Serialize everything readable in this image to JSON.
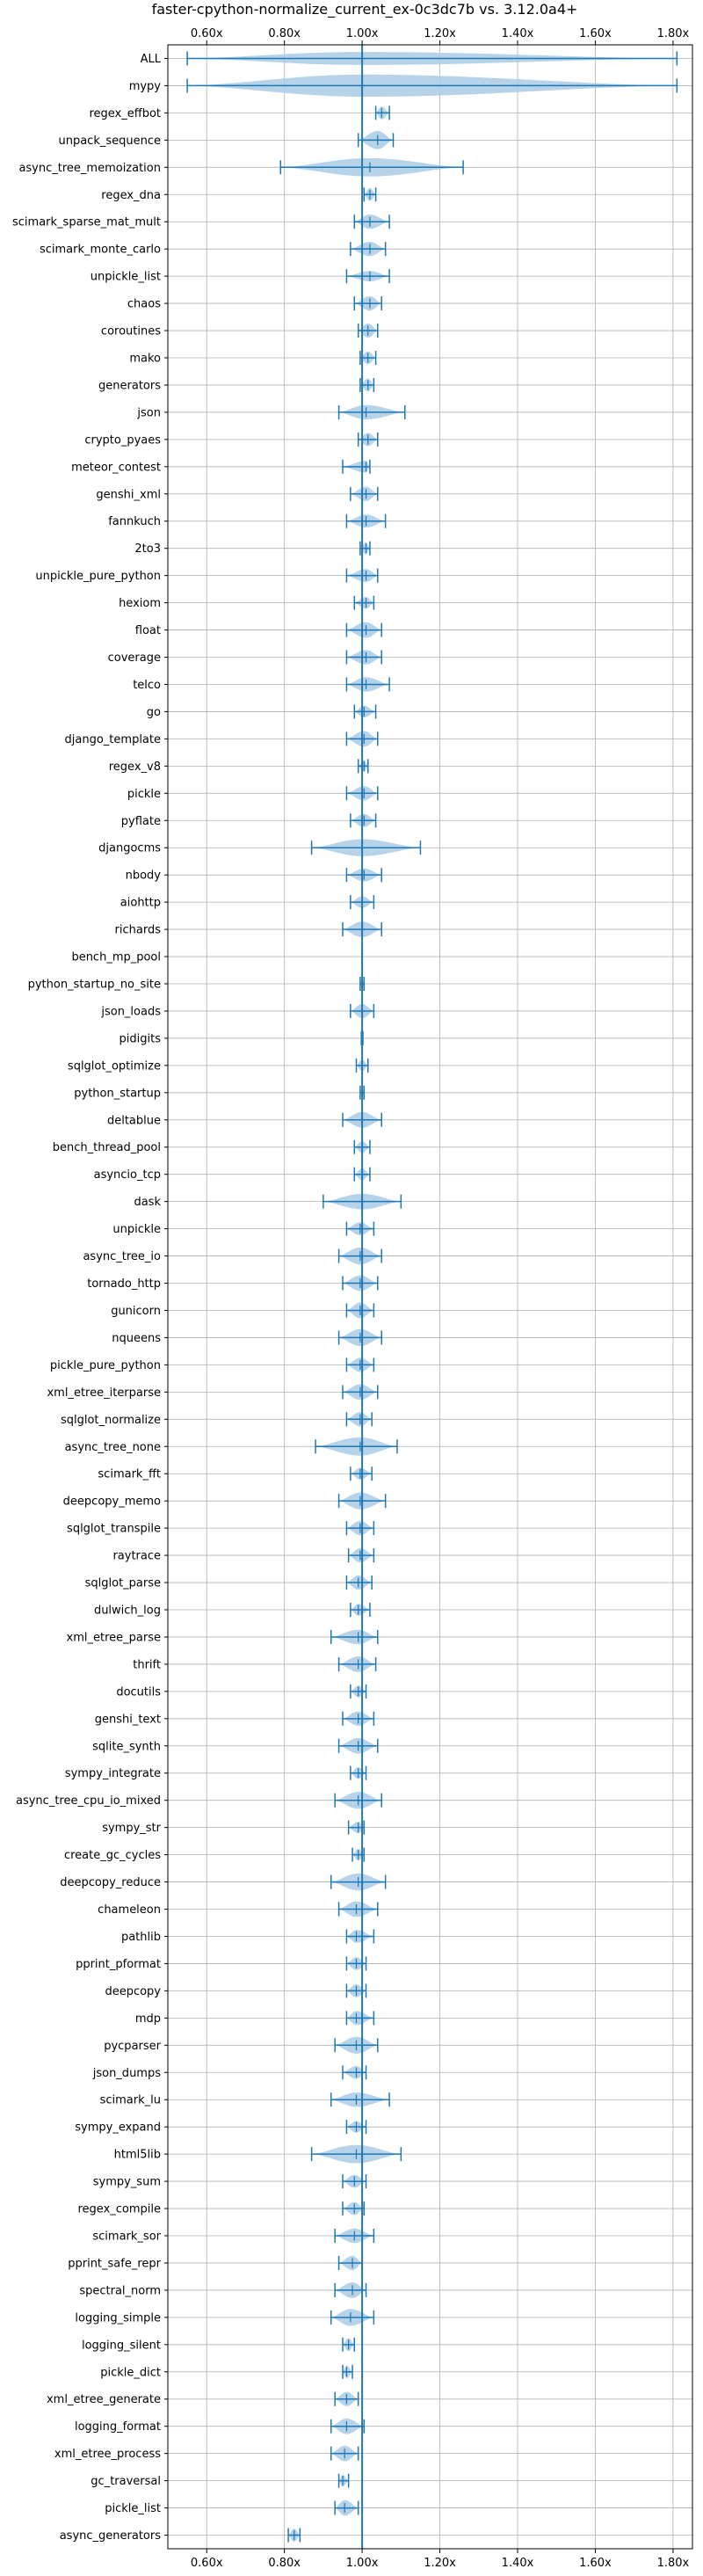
{
  "chart_data": {
    "type": "violin",
    "title": "faster-cpython-normalize_current_ex-0c3dc7b vs. 3.12.0a4+",
    "xlabel": "",
    "ylabel": "",
    "x_ticks": [
      0.6,
      0.8,
      1.0,
      1.2,
      1.4,
      1.6,
      1.8
    ],
    "x_tick_labels": [
      "0.60x",
      "0.80x",
      "1.00x",
      "1.20x",
      "1.40x",
      "1.60x",
      "1.80x"
    ],
    "xlim": [
      0.5,
      1.85
    ],
    "reference_line": 1.0,
    "grid": true,
    "colors": {
      "violin": "#a9cbe6",
      "line": "#1f77b4",
      "axis": "#000000",
      "grid": "#b0b0b0"
    },
    "benchmarks": [
      {
        "name": "ALL",
        "min": 0.55,
        "max": 1.81,
        "median": 1.0,
        "width": 0.5
      },
      {
        "name": "mypy",
        "min": 0.55,
        "max": 1.81,
        "median": 1.0,
        "width": 0.85
      },
      {
        "name": "regex_effbot",
        "min": 1.035,
        "max": 1.07,
        "median": 1.05,
        "width": 0.5
      },
      {
        "name": "unpack_sequence",
        "min": 0.99,
        "max": 1.08,
        "median": 1.04,
        "width": 0.7
      },
      {
        "name": "async_tree_memoization",
        "min": 0.79,
        "max": 1.26,
        "median": 1.02,
        "width": 0.7
      },
      {
        "name": "regex_dna",
        "min": 1.005,
        "max": 1.035,
        "median": 1.02,
        "width": 0.5
      },
      {
        "name": "scimark_sparse_mat_mult",
        "min": 0.98,
        "max": 1.07,
        "median": 1.02,
        "width": 0.55
      },
      {
        "name": "scimark_monte_carlo",
        "min": 0.97,
        "max": 1.06,
        "median": 1.02,
        "width": 0.55
      },
      {
        "name": "unpickle_list",
        "min": 0.96,
        "max": 1.07,
        "median": 1.02,
        "width": 0.4
      },
      {
        "name": "chaos",
        "min": 0.98,
        "max": 1.05,
        "median": 1.02,
        "width": 0.55
      },
      {
        "name": "coroutines",
        "min": 0.99,
        "max": 1.04,
        "median": 1.015,
        "width": 0.55
      },
      {
        "name": "mako",
        "min": 0.995,
        "max": 1.035,
        "median": 1.015,
        "width": 0.5
      },
      {
        "name": "generators",
        "min": 0.995,
        "max": 1.03,
        "median": 1.015,
        "width": 0.5
      },
      {
        "name": "json",
        "min": 0.94,
        "max": 1.11,
        "median": 1.01,
        "width": 0.55
      },
      {
        "name": "crypto_pyaes",
        "min": 0.99,
        "max": 1.04,
        "median": 1.015,
        "width": 0.5
      },
      {
        "name": "meteor_contest",
        "min": 0.95,
        "max": 1.02,
        "median": 1.01,
        "width": 0.45
      },
      {
        "name": "genshi_xml",
        "min": 0.97,
        "max": 1.04,
        "median": 1.01,
        "width": 0.55
      },
      {
        "name": "fannkuch",
        "min": 0.96,
        "max": 1.06,
        "median": 1.01,
        "width": 0.5
      },
      {
        "name": "2to3",
        "min": 0.995,
        "max": 1.02,
        "median": 1.01,
        "width": 0.45
      },
      {
        "name": "unpickle_pure_python",
        "min": 0.96,
        "max": 1.04,
        "median": 1.01,
        "width": 0.5
      },
      {
        "name": "hexiom",
        "min": 0.98,
        "max": 1.03,
        "median": 1.01,
        "width": 0.45
      },
      {
        "name": "float",
        "min": 0.96,
        "max": 1.05,
        "median": 1.01,
        "width": 0.6
      },
      {
        "name": "coverage",
        "min": 0.96,
        "max": 1.05,
        "median": 1.01,
        "width": 0.55
      },
      {
        "name": "telco",
        "min": 0.96,
        "max": 1.07,
        "median": 1.01,
        "width": 0.55
      },
      {
        "name": "go",
        "min": 0.98,
        "max": 1.035,
        "median": 1.005,
        "width": 0.45
      },
      {
        "name": "django_template",
        "min": 0.96,
        "max": 1.04,
        "median": 1.005,
        "width": 0.6
      },
      {
        "name": "regex_v8",
        "min": 0.99,
        "max": 1.015,
        "median": 1.005,
        "width": 0.45
      },
      {
        "name": "pickle",
        "min": 0.96,
        "max": 1.04,
        "median": 1.005,
        "width": 0.55
      },
      {
        "name": "pyflate",
        "min": 0.97,
        "max": 1.035,
        "median": 1.005,
        "width": 0.5
      },
      {
        "name": "djangocms",
        "min": 0.87,
        "max": 1.15,
        "median": 1.0,
        "width": 0.65
      },
      {
        "name": "nbody",
        "min": 0.96,
        "max": 1.05,
        "median": 1.005,
        "width": 0.5
      },
      {
        "name": "aiohttp",
        "min": 0.97,
        "max": 1.03,
        "median": 1.0,
        "width": 0.45
      },
      {
        "name": "richards",
        "min": 0.95,
        "max": 1.05,
        "median": 1.0,
        "width": 0.6
      },
      {
        "name": "bench_mp_pool",
        "min": 1.0,
        "max": 1.0,
        "median": 1.0,
        "width": 0.05
      },
      {
        "name": "python_startup_no_site",
        "min": 0.995,
        "max": 1.005,
        "median": 1.0,
        "width": 0.4
      },
      {
        "name": "json_loads",
        "min": 0.97,
        "max": 1.03,
        "median": 1.0,
        "width": 0.55
      },
      {
        "name": "pidigits",
        "min": 0.998,
        "max": 1.002,
        "median": 1.0,
        "width": 0.3
      },
      {
        "name": "sqlglot_optimize",
        "min": 0.985,
        "max": 1.015,
        "median": 1.0,
        "width": 0.45
      },
      {
        "name": "python_startup",
        "min": 0.995,
        "max": 1.005,
        "median": 1.0,
        "width": 0.4
      },
      {
        "name": "deltablue",
        "min": 0.95,
        "max": 1.05,
        "median": 1.0,
        "width": 0.6
      },
      {
        "name": "bench_thread_pool",
        "min": 0.98,
        "max": 1.02,
        "median": 1.0,
        "width": 0.45
      },
      {
        "name": "asyncio_tcp",
        "min": 0.98,
        "max": 1.02,
        "median": 1.0,
        "width": 0.45
      },
      {
        "name": "dask",
        "min": 0.9,
        "max": 1.1,
        "median": 1.0,
        "width": 0.6
      },
      {
        "name": "unpickle",
        "min": 0.96,
        "max": 1.03,
        "median": 0.995,
        "width": 0.5
      },
      {
        "name": "async_tree_io",
        "min": 0.94,
        "max": 1.05,
        "median": 0.995,
        "width": 0.65
      },
      {
        "name": "tornado_http",
        "min": 0.95,
        "max": 1.04,
        "median": 0.995,
        "width": 0.6
      },
      {
        "name": "gunicorn",
        "min": 0.96,
        "max": 1.03,
        "median": 0.995,
        "width": 0.6
      },
      {
        "name": "nqueens",
        "min": 0.94,
        "max": 1.05,
        "median": 0.995,
        "width": 0.65
      },
      {
        "name": "pickle_pure_python",
        "min": 0.96,
        "max": 1.03,
        "median": 0.995,
        "width": 0.55
      },
      {
        "name": "xml_etree_iterparse",
        "min": 0.95,
        "max": 1.04,
        "median": 0.995,
        "width": 0.6
      },
      {
        "name": "sqlglot_normalize",
        "min": 0.96,
        "max": 1.025,
        "median": 0.995,
        "width": 0.55
      },
      {
        "name": "async_tree_none",
        "min": 0.88,
        "max": 1.09,
        "median": 0.995,
        "width": 0.7
      },
      {
        "name": "scimark_fft",
        "min": 0.97,
        "max": 1.025,
        "median": 0.995,
        "width": 0.45
      },
      {
        "name": "deepcopy_memo",
        "min": 0.94,
        "max": 1.06,
        "median": 0.995,
        "width": 0.65
      },
      {
        "name": "sqlglot_transpile",
        "min": 0.96,
        "max": 1.03,
        "median": 0.995,
        "width": 0.55
      },
      {
        "name": "raytrace",
        "min": 0.965,
        "max": 1.03,
        "median": 0.995,
        "width": 0.55
      },
      {
        "name": "sqlglot_parse",
        "min": 0.96,
        "max": 1.025,
        "median": 0.99,
        "width": 0.55
      },
      {
        "name": "dulwich_log",
        "min": 0.97,
        "max": 1.02,
        "median": 0.99,
        "width": 0.45
      },
      {
        "name": "xml_etree_parse",
        "min": 0.92,
        "max": 1.04,
        "median": 0.99,
        "width": 0.55
      },
      {
        "name": "thrift",
        "min": 0.94,
        "max": 1.035,
        "median": 0.99,
        "width": 0.6
      },
      {
        "name": "docutils",
        "min": 0.97,
        "max": 1.01,
        "median": 0.99,
        "width": 0.45
      },
      {
        "name": "genshi_text",
        "min": 0.95,
        "max": 1.03,
        "median": 0.99,
        "width": 0.55
      },
      {
        "name": "sqlite_synth",
        "min": 0.94,
        "max": 1.04,
        "median": 0.99,
        "width": 0.6
      },
      {
        "name": "sympy_integrate",
        "min": 0.97,
        "max": 1.01,
        "median": 0.99,
        "width": 0.45
      },
      {
        "name": "async_tree_cpu_io_mixed",
        "min": 0.93,
        "max": 1.05,
        "median": 0.99,
        "width": 0.65
      },
      {
        "name": "sympy_str",
        "min": 0.965,
        "max": 1.005,
        "median": 0.99,
        "width": 0.45
      },
      {
        "name": "create_gc_cycles",
        "min": 0.975,
        "max": 1.005,
        "median": 0.99,
        "width": 0.45
      },
      {
        "name": "deepcopy_reduce",
        "min": 0.92,
        "max": 1.06,
        "median": 0.99,
        "width": 0.65
      },
      {
        "name": "chameleon",
        "min": 0.94,
        "max": 1.04,
        "median": 0.985,
        "width": 0.6
      },
      {
        "name": "pathlib",
        "min": 0.96,
        "max": 1.03,
        "median": 0.985,
        "width": 0.5
      },
      {
        "name": "pprint_pformat",
        "min": 0.96,
        "max": 1.01,
        "median": 0.985,
        "width": 0.5
      },
      {
        "name": "deepcopy",
        "min": 0.96,
        "max": 1.01,
        "median": 0.985,
        "width": 0.5
      },
      {
        "name": "mdp",
        "min": 0.96,
        "max": 1.03,
        "median": 0.985,
        "width": 0.55
      },
      {
        "name": "pycparser",
        "min": 0.93,
        "max": 1.04,
        "median": 0.985,
        "width": 0.65
      },
      {
        "name": "json_dumps",
        "min": 0.95,
        "max": 1.01,
        "median": 0.985,
        "width": 0.5
      },
      {
        "name": "scimark_lu",
        "min": 0.92,
        "max": 1.07,
        "median": 0.985,
        "width": 0.55
      },
      {
        "name": "sympy_expand",
        "min": 0.96,
        "max": 1.01,
        "median": 0.985,
        "width": 0.45
      },
      {
        "name": "html5lib",
        "min": 0.87,
        "max": 1.1,
        "median": 0.985,
        "width": 0.7
      },
      {
        "name": "sympy_sum",
        "min": 0.95,
        "max": 1.01,
        "median": 0.98,
        "width": 0.5
      },
      {
        "name": "regex_compile",
        "min": 0.95,
        "max": 1.005,
        "median": 0.98,
        "width": 0.5
      },
      {
        "name": "scimark_sor",
        "min": 0.93,
        "max": 1.03,
        "median": 0.98,
        "width": 0.55
      },
      {
        "name": "pprint_safe_repr",
        "min": 0.94,
        "max": 1.0,
        "median": 0.975,
        "width": 0.55
      },
      {
        "name": "spectral_norm",
        "min": 0.93,
        "max": 1.01,
        "median": 0.975,
        "width": 0.6
      },
      {
        "name": "logging_simple",
        "min": 0.92,
        "max": 1.03,
        "median": 0.97,
        "width": 0.65
      },
      {
        "name": "logging_silent",
        "min": 0.95,
        "max": 0.98,
        "median": 0.965,
        "width": 0.5
      },
      {
        "name": "pickle_dict",
        "min": 0.95,
        "max": 0.975,
        "median": 0.96,
        "width": 0.5
      },
      {
        "name": "xml_etree_generate",
        "min": 0.93,
        "max": 0.99,
        "median": 0.96,
        "width": 0.55
      },
      {
        "name": "logging_format",
        "min": 0.92,
        "max": 1.005,
        "median": 0.96,
        "width": 0.6
      },
      {
        "name": "xml_etree_process",
        "min": 0.92,
        "max": 0.99,
        "median": 0.955,
        "width": 0.6
      },
      {
        "name": "gc_traversal",
        "min": 0.94,
        "max": 0.965,
        "median": 0.95,
        "width": 0.45
      },
      {
        "name": "pickle_list",
        "min": 0.93,
        "max": 0.99,
        "median": 0.955,
        "width": 0.6
      },
      {
        "name": "async_generators",
        "min": 0.81,
        "max": 0.84,
        "median": 0.825,
        "width": 0.5
      }
    ]
  }
}
